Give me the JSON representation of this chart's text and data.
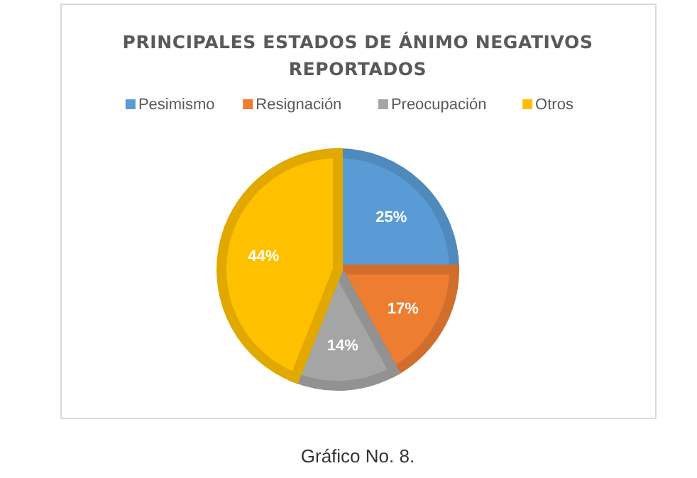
{
  "chart_data": {
    "type": "pie",
    "title": "PRINCIPALES ESTADOS DE ÁNIMO NEGATIVOS REPORTADOS",
    "categories": [
      "Pesimismo",
      "Resignación",
      "Preocupación",
      "Otros"
    ],
    "values": [
      25,
      17,
      14,
      44
    ],
    "colors": [
      "#5b9bd5",
      "#ed7d31",
      "#a5a5a5",
      "#ffc000"
    ],
    "value_labels": [
      "25%",
      "17%",
      "14%",
      "44%"
    ],
    "legend": "top",
    "annotations": [
      "Gráfico No. 8."
    ]
  }
}
